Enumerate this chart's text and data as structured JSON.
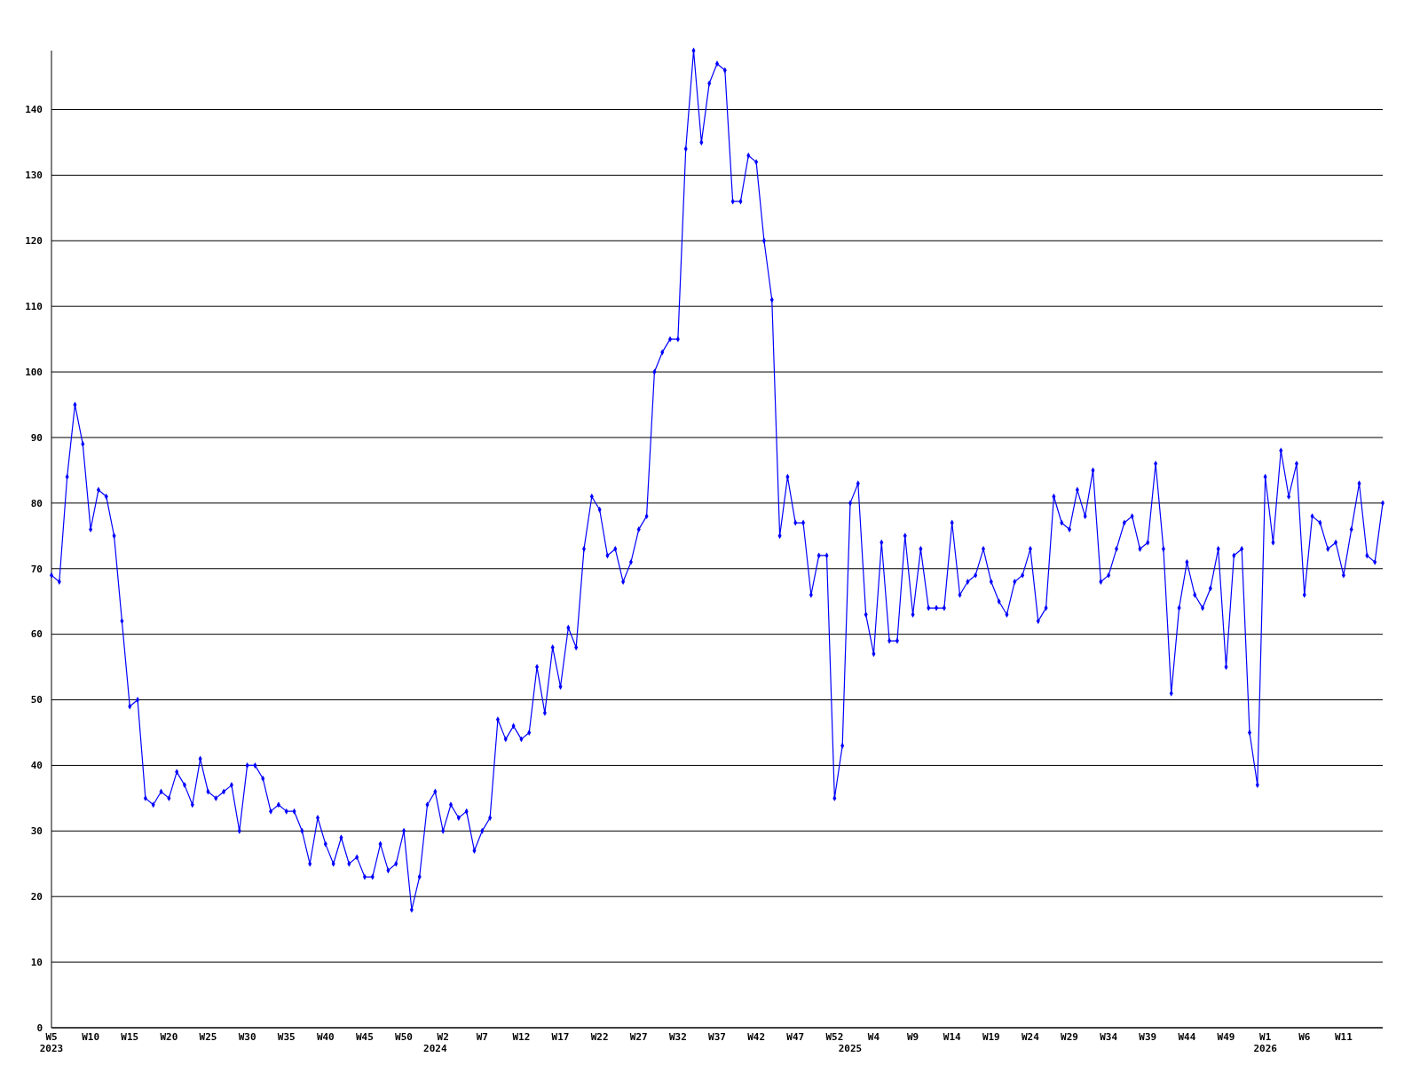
{
  "chart_data": {
    "type": "line",
    "categories": [
      "W5\n2023",
      null,
      null,
      null,
      null,
      "W10",
      null,
      null,
      null,
      null,
      "W15",
      null,
      null,
      null,
      null,
      "W20",
      null,
      null,
      null,
      null,
      "W25",
      null,
      null,
      null,
      null,
      "W30",
      null,
      null,
      null,
      null,
      "W35",
      null,
      null,
      null,
      null,
      "W40",
      null,
      null,
      null,
      null,
      "W45",
      null,
      null,
      null,
      null,
      "W50",
      null,
      null,
      null,
      "\n2024",
      "W2",
      null,
      null,
      null,
      null,
      "W7",
      null,
      null,
      null,
      null,
      "W12",
      null,
      null,
      null,
      null,
      "W17",
      null,
      null,
      null,
      null,
      "W22",
      null,
      null,
      null,
      null,
      "W27",
      null,
      null,
      null,
      null,
      "W32",
      null,
      null,
      null,
      null,
      "W37",
      null,
      null,
      null,
      null,
      "W42",
      null,
      null,
      null,
      null,
      "W47",
      null,
      null,
      null,
      null,
      "W52",
      null,
      "\n2025",
      null,
      null,
      "W4",
      null,
      null,
      null,
      null,
      "W9",
      null,
      null,
      null,
      null,
      "W14",
      null,
      null,
      null,
      null,
      "W19",
      null,
      null,
      null,
      null,
      "W24",
      null,
      null,
      null,
      null,
      "W29",
      null,
      null,
      null,
      null,
      "W34",
      null,
      null,
      null,
      null,
      "W39",
      null,
      null,
      null,
      null,
      "W44",
      null,
      null,
      null,
      null,
      "W49",
      null,
      null,
      null,
      null,
      "W1\n2026",
      null,
      null,
      null,
      null,
      "W6",
      null,
      null,
      null,
      null,
      "W11",
      null,
      null,
      null,
      null,
      null
    ],
    "series": [
      {
        "color": "#0000ff",
        "values": [
          69,
          68,
          84,
          95,
          89,
          76,
          82,
          81,
          75,
          62,
          49,
          50,
          35,
          34,
          36,
          35,
          39,
          37,
          34,
          41,
          36,
          35,
          36,
          37,
          30,
          40,
          40,
          38,
          33,
          34,
          33,
          33,
          30,
          25,
          32,
          28,
          25,
          29,
          25,
          26,
          23,
          23,
          28,
          24,
          25,
          30,
          18,
          23,
          34,
          36,
          30,
          34,
          32,
          33,
          27,
          30,
          32,
          47,
          44,
          46,
          44,
          45,
          55,
          48,
          58,
          52,
          61,
          58,
          73,
          81,
          79,
          72,
          73,
          68,
          71,
          76,
          78,
          100,
          103,
          105,
          105,
          134,
          149,
          135,
          144,
          147,
          146,
          126,
          126,
          133,
          132,
          120,
          111,
          75,
          84,
          77,
          77,
          66,
          72,
          72,
          35,
          43,
          80,
          83,
          63,
          57,
          74,
          59,
          59,
          75,
          63,
          73,
          64,
          64,
          64,
          77,
          66,
          68,
          69,
          73,
          68,
          65,
          63,
          68,
          69,
          73,
          62,
          64,
          81,
          77,
          76,
          82,
          78,
          85,
          68,
          69,
          73,
          77,
          78,
          73,
          74,
          86,
          73,
          51,
          64,
          71,
          66,
          64,
          67,
          73,
          55,
          72,
          73,
          45,
          37,
          84,
          74,
          88,
          81,
          86,
          66,
          78,
          77,
          73,
          74,
          69,
          76,
          83,
          72,
          71,
          80
        ]
      }
    ],
    "ylim": [
      0,
      149
    ],
    "yticks": [
      0,
      10,
      20,
      30,
      40,
      50,
      60,
      70,
      80,
      90,
      100,
      110,
      120,
      130,
      140
    ],
    "grid": "y",
    "marker": "diamond",
    "line_style": "solid"
  }
}
